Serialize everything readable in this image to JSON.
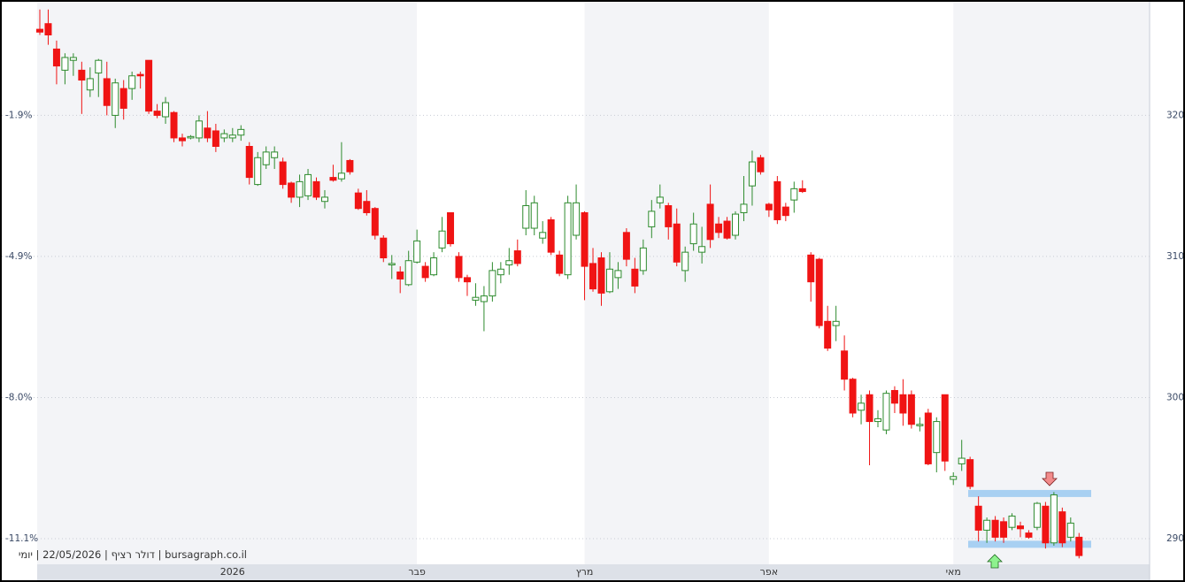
{
  "chart_data": {
    "type": "candlestick",
    "watermark": "bursagraph.co.il | דולר רציף | 22/05/2026 | יומי",
    "categories": [
      null,
      null,
      null,
      null,
      null,
      null,
      null,
      null,
      null,
      null,
      null,
      null,
      null,
      null,
      null,
      null,
      null,
      null,
      null,
      null,
      null,
      null,
      null,
      "2026",
      null,
      null,
      null,
      null,
      null,
      null,
      null,
      null,
      null,
      null,
      null,
      null,
      null,
      null,
      null,
      null,
      null,
      null,
      null,
      null,
      null,
      "פבר",
      null,
      null,
      null,
      null,
      null,
      null,
      null,
      null,
      null,
      null,
      null,
      null,
      null,
      null,
      null,
      null,
      null,
      null,
      null,
      "מרץ",
      null,
      null,
      null,
      null,
      null,
      null,
      null,
      null,
      null,
      null,
      null,
      null,
      null,
      null,
      null,
      null,
      null,
      null,
      null,
      null,
      null,
      "אפר",
      null,
      null,
      null,
      null,
      null,
      null,
      null,
      null,
      null,
      null,
      null,
      null,
      null,
      null,
      null,
      null,
      null,
      null,
      null,
      null,
      null,
      "מאי",
      null,
      null,
      null,
      null,
      null,
      null,
      null,
      null,
      null,
      null,
      null,
      null,
      null,
      null,
      null
    ],
    "open": [
      326.1,
      326.5,
      324.7,
      323.2,
      323.9,
      323.2,
      321.8,
      323.0,
      322.6,
      320.0,
      321.9,
      321.9,
      322.9,
      323.9,
      320.3,
      319.9,
      320.2,
      318.4,
      318.4,
      318.4,
      319.1,
      318.9,
      318.4,
      318.4,
      318.6,
      317.8,
      315.1,
      316.5,
      317.0,
      316.7,
      315.2,
      314.2,
      314.3,
      315.3,
      313.9,
      315.6,
      315.5,
      316.8,
      314.5,
      313.9,
      313.4,
      311.3,
      309.4,
      308.9,
      308.0,
      309.6,
      309.3,
      308.7,
      310.6,
      313.1,
      310.0,
      308.5,
      306.9,
      306.8,
      307.2,
      308.7,
      309.4,
      310.4,
      312.0,
      312.0,
      311.3,
      312.6,
      310.1,
      308.7,
      311.5,
      313.1,
      309.5,
      309.9,
      307.5,
      308.5,
      311.7,
      309.1,
      309.0,
      312.1,
      313.8,
      313.6,
      312.3,
      309.0,
      310.9,
      310.3,
      313.7,
      312.3,
      312.5,
      311.5,
      313.1,
      315.0,
      317.0,
      313.7,
      315.3,
      313.5,
      314.0,
      314.8,
      310.1,
      309.8,
      305.4,
      305.1,
      303.3,
      301.3,
      299.1,
      300.2,
      298.3,
      297.7,
      300.5,
      300.2,
      300.2,
      298.0,
      298.9,
      296.1,
      300.2,
      294.2,
      295.3,
      295.6,
      292.3,
      290.6,
      291.3,
      291.2,
      290.8,
      290.9,
      290.4,
      290.8,
      292.3,
      289.7,
      291.9,
      290.1,
      290.1
    ],
    "high": [
      327.5,
      327.5,
      325.3,
      324.4,
      324.4,
      323.8,
      323.4,
      324.0,
      323.8,
      322.6,
      322.5,
      323.1,
      323.1,
      323.9,
      320.8,
      321.3,
      320.3,
      318.7,
      318.6,
      320.0,
      320.3,
      319.4,
      319.0,
      319.1,
      319.3,
      318.1,
      317.4,
      317.8,
      317.8,
      317.0,
      315.3,
      315.8,
      316.2,
      315.6,
      314.7,
      316.5,
      318.1,
      316.9,
      314.8,
      314.7,
      313.5,
      311.5,
      310.1,
      309.3,
      310.4,
      311.9,
      309.6,
      310.3,
      312.8,
      313.1,
      310.3,
      308.7,
      308.1,
      307.9,
      309.6,
      309.6,
      310.6,
      311.2,
      314.7,
      314.3,
      312.5,
      312.8,
      310.4,
      314.3,
      315.1,
      313.2,
      310.6,
      310.3,
      310.3,
      309.6,
      312.0,
      309.9,
      311.2,
      314.0,
      315.1,
      313.8,
      313.4,
      310.7,
      313.1,
      312.1,
      315.1,
      312.8,
      312.8,
      313.2,
      315.7,
      317.5,
      317.2,
      313.8,
      315.7,
      313.8,
      315.3,
      315.4,
      310.3,
      309.9,
      306.5,
      306.5,
      304.4,
      301.4,
      300.2,
      300.5,
      299.1,
      300.5,
      300.8,
      301.3,
      300.5,
      298.6,
      299.2,
      298.6,
      300.2,
      294.7,
      297.0,
      295.8,
      293.0,
      291.5,
      291.6,
      291.5,
      291.8,
      291.2,
      290.6,
      292.6,
      292.6,
      293.3,
      292.2,
      291.5,
      290.4
    ],
    "low": [
      325.7,
      325.0,
      322.2,
      322.2,
      322.8,
      320.1,
      321.3,
      321.3,
      320.0,
      319.1,
      319.7,
      321.1,
      321.9,
      320.1,
      319.8,
      319.4,
      318.1,
      317.8,
      318.3,
      318.1,
      318.1,
      317.4,
      318.1,
      318.1,
      318.2,
      315.1,
      315.0,
      316.2,
      316.2,
      314.8,
      313.8,
      313.5,
      314.0,
      314.0,
      313.4,
      315.3,
      315.3,
      315.8,
      313.3,
      312.9,
      311.2,
      309.6,
      308.4,
      307.4,
      307.9,
      309.5,
      308.2,
      308.6,
      310.3,
      310.7,
      308.2,
      307.2,
      306.5,
      304.7,
      306.8,
      308.1,
      308.7,
      309.3,
      311.5,
      311.5,
      310.9,
      310.1,
      308.6,
      308.4,
      311.2,
      306.9,
      307.5,
      306.5,
      307.4,
      307.7,
      309.3,
      307.4,
      308.7,
      311.3,
      313.4,
      311.2,
      309.3,
      308.2,
      310.4,
      309.5,
      310.6,
      311.3,
      311.2,
      311.2,
      312.5,
      313.6,
      315.8,
      312.8,
      312.3,
      312.5,
      313.1,
      314.5,
      306.8,
      304.9,
      303.3,
      304.0,
      300.5,
      298.6,
      298.1,
      295.2,
      297.9,
      297.4,
      298.9,
      298.0,
      297.8,
      297.6,
      295.2,
      294.7,
      294.8,
      293.8,
      294.8,
      293.5,
      289.8,
      289.7,
      289.8,
      289.7,
      290.6,
      290.1,
      290.0,
      290.6,
      289.3,
      289.5,
      289.4,
      289.8,
      288.6
    ],
    "close": [
      325.9,
      325.7,
      323.5,
      324.1,
      324.1,
      322.5,
      322.6,
      323.9,
      320.7,
      322.3,
      320.5,
      322.8,
      322.8,
      320.3,
      320.0,
      320.9,
      318.4,
      318.2,
      318.5,
      319.6,
      318.4,
      317.8,
      318.7,
      318.6,
      319.0,
      315.6,
      317.0,
      317.4,
      317.4,
      315.1,
      314.2,
      315.3,
      315.8,
      314.2,
      314.2,
      315.4,
      315.9,
      316.0,
      313.4,
      313.1,
      311.5,
      309.9,
      309.5,
      308.4,
      309.7,
      311.1,
      308.5,
      309.9,
      311.8,
      310.9,
      308.5,
      308.2,
      307.1,
      307.2,
      309.0,
      309.1,
      309.7,
      309.5,
      313.6,
      313.8,
      311.7,
      310.3,
      308.8,
      313.8,
      313.8,
      309.3,
      307.7,
      307.4,
      309.1,
      309.0,
      309.8,
      307.9,
      310.6,
      313.2,
      314.2,
      312.1,
      309.6,
      310.3,
      312.3,
      310.7,
      311.2,
      311.7,
      311.3,
      313.0,
      313.7,
      316.7,
      316.0,
      313.3,
      312.6,
      312.9,
      314.8,
      314.6,
      308.2,
      305.1,
      303.5,
      305.4,
      301.3,
      298.9,
      299.6,
      298.3,
      298.5,
      300.3,
      299.6,
      298.9,
      298.1,
      298.1,
      295.3,
      298.3,
      295.5,
      294.4,
      295.7,
      293.7,
      290.6,
      291.3,
      290.1,
      290.1,
      291.6,
      290.7,
      290.1,
      292.5,
      289.7,
      293.1,
      289.7,
      291.1,
      288.8
    ],
    "up_color": "#2e8b2e",
    "down_color": "#f01414",
    "levels": [
      293.2,
      289.6
    ],
    "level_color": "#a8d0f2",
    "ylim": [
      288.18,
      328.05
    ],
    "yticks": [
      290,
      300,
      310,
      320
    ],
    "yticks_left": [
      {
        "value": 290,
        "label": "-11.1%"
      },
      {
        "value": 300,
        "label": "-8.0%"
      },
      {
        "value": 310,
        "label": "-4.9%"
      },
      {
        "value": 320,
        "label": "-1.9%"
      }
    ],
    "grid": true
  }
}
